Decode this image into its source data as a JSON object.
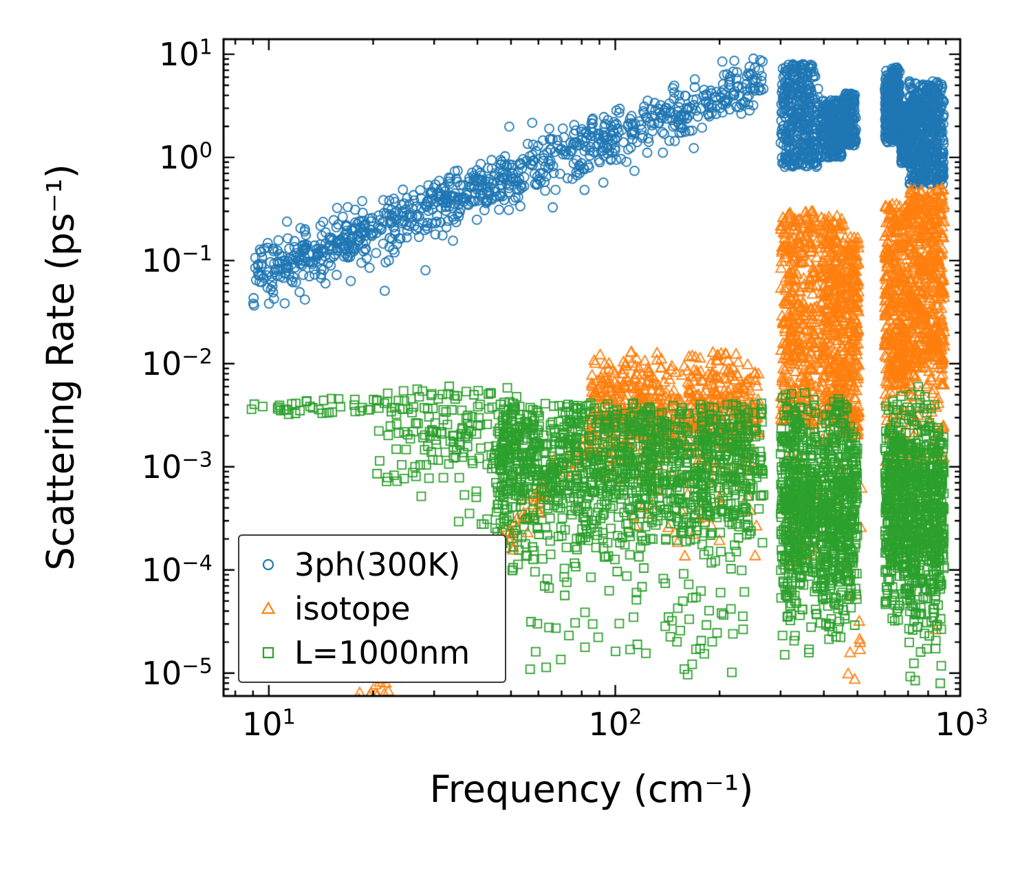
{
  "chart_data": {
    "type": "scatter",
    "title": "",
    "xlabel": "Frequency (cm⁻¹)",
    "ylabel": "Scattering Rate (ps⁻¹)",
    "x_scale": "log",
    "y_scale": "log",
    "xlim": [
      7.4,
      990
    ],
    "ylim": [
      6e-06,
      14
    ],
    "grid": false,
    "legend_position": "lower left",
    "x_ticks": [
      {
        "value": 10,
        "mantissa": "10",
        "exponent": "1"
      },
      {
        "value": 100,
        "mantissa": "10",
        "exponent": "2"
      },
      {
        "value": 1000,
        "mantissa": "10",
        "exponent": "3"
      }
    ],
    "y_ticks": [
      {
        "value": 1e-05,
        "mantissa": "10",
        "exponent": "−5"
      },
      {
        "value": 0.0001,
        "mantissa": "10",
        "exponent": "−4"
      },
      {
        "value": 0.001,
        "mantissa": "10",
        "exponent": "−3"
      },
      {
        "value": 0.01,
        "mantissa": "10",
        "exponent": "−2"
      },
      {
        "value": 0.1,
        "mantissa": "10",
        "exponent": "−1"
      },
      {
        "value": 1,
        "mantissa": "10",
        "exponent": "0"
      },
      {
        "value": 10,
        "mantissa": "10",
        "exponent": "1"
      }
    ],
    "series": [
      {
        "name": "3ph(300K)",
        "marker": "circle",
        "color": "#1f77b4",
        "clusters": [
          {
            "type": "powerlaw",
            "x_min": 9,
            "x_max": 268,
            "coeff": 0.004,
            "exponent": 1.3,
            "scatter_dex": 0.14,
            "count": 900
          },
          {
            "type": "band",
            "x_min": 16,
            "x_max": 30,
            "y_min": 0.04,
            "y_max": 0.12,
            "count": 5
          },
          {
            "type": "band",
            "x_min": 300,
            "x_max": 385,
            "y_min": 0.8,
            "y_max": 8,
            "count": 380
          },
          {
            "type": "band",
            "x_min": 392,
            "x_max": 452,
            "y_min": 1.0,
            "y_max": 3.6,
            "count": 260
          },
          {
            "type": "band",
            "x_min": 455,
            "x_max": 495,
            "y_min": 1.3,
            "y_max": 4.2,
            "count": 170
          },
          {
            "type": "band",
            "x_min": 600,
            "x_max": 662,
            "y_min": 1.4,
            "y_max": 7.5,
            "count": 320
          },
          {
            "type": "band",
            "x_min": 668,
            "x_max": 712,
            "y_min": 0.85,
            "y_max": 3.2,
            "count": 170
          },
          {
            "type": "band",
            "x_min": 705,
            "x_max": 888,
            "y_min": 0.55,
            "y_max": 5.5,
            "count": 520
          }
        ]
      },
      {
        "name": "isotope",
        "marker": "triangle",
        "color": "#ff7f0e",
        "clusters": [
          {
            "type": "powerlaw",
            "x_min": 18,
            "x_max": 85,
            "coeff": 3.9e-11,
            "exponent": 4.0,
            "scatter_dex": 0.12,
            "count": 160
          },
          {
            "type": "cloud",
            "x_min": 85,
            "x_max": 262,
            "y_center": 0.0038,
            "y_sigma_dex": 0.32,
            "y_min": 0.0007,
            "y_max": 0.013,
            "count": 650
          },
          {
            "type": "cloud",
            "x_min": 110,
            "x_max": 260,
            "y_center": 0.0004,
            "y_sigma_dex": 0.3,
            "y_min": 0.0001,
            "y_max": 0.001,
            "count": 30
          },
          {
            "type": "band",
            "x_min": 300,
            "x_max": 382,
            "y_min": 0.0025,
            "y_max": 0.3,
            "count": 380
          },
          {
            "type": "band",
            "x_min": 300,
            "x_max": 382,
            "y_min": 0.0001,
            "y_max": 0.0025,
            "count": 25
          },
          {
            "type": "band",
            "x_min": 390,
            "x_max": 458,
            "y_min": 0.0025,
            "y_max": 0.27,
            "count": 320
          },
          {
            "type": "band",
            "x_min": 390,
            "x_max": 458,
            "y_min": 0.0002,
            "y_max": 0.0025,
            "count": 20
          },
          {
            "type": "band",
            "x_min": 458,
            "x_max": 505,
            "y_min": 0.002,
            "y_max": 0.17,
            "count": 220
          },
          {
            "type": "band",
            "x_min": 460,
            "x_max": 520,
            "y_min": 8e-06,
            "y_max": 0.002,
            "count": 12
          },
          {
            "type": "band",
            "x_min": 600,
            "x_max": 700,
            "y_min": 0.006,
            "y_max": 0.35,
            "count": 340
          },
          {
            "type": "band",
            "x_min": 600,
            "x_max": 700,
            "y_min": 0.0008,
            "y_max": 0.006,
            "count": 30
          },
          {
            "type": "band",
            "x_min": 702,
            "x_max": 890,
            "y_min": 0.009,
            "y_max": 0.5,
            "count": 480
          },
          {
            "type": "band",
            "x_min": 702,
            "x_max": 890,
            "y_min": 0.0012,
            "y_max": 0.009,
            "count": 60
          },
          {
            "type": "band",
            "x_min": 720,
            "x_max": 880,
            "y_min": 2e-05,
            "y_max": 0.0012,
            "count": 10
          }
        ]
      },
      {
        "name": "L=1000nm",
        "marker": "square",
        "color": "#2ca02c",
        "clusters": [
          {
            "type": "band",
            "x_min": 8.8,
            "x_max": 28,
            "y_min": 0.0032,
            "y_max": 0.0046,
            "count": 45
          },
          {
            "type": "cloud",
            "x_min": 20,
            "x_max": 60,
            "y_center": 0.0022,
            "y_sigma_dex": 0.28,
            "y_min": 0.0004,
            "y_max": 0.0075,
            "count": 170
          },
          {
            "type": "band",
            "x_min": 35,
            "x_max": 60,
            "y_min": 8e-05,
            "y_max": 0.0006,
            "count": 35
          },
          {
            "type": "cloud",
            "x_min": 45,
            "x_max": 268,
            "y_center": 0.0011,
            "y_sigma_dex": 0.42,
            "y_min": 5e-05,
            "y_max": 0.0042,
            "count": 1300
          },
          {
            "type": "cloud",
            "x_min": 55,
            "x_max": 268,
            "y_center": 3e-05,
            "y_sigma_dex": 0.35,
            "y_min": 8e-06,
            "y_max": 0.00012,
            "count": 70
          },
          {
            "type": "cloud",
            "x_min": 300,
            "x_max": 385,
            "y_center": 0.00045,
            "y_sigma_dex": 0.55,
            "y_min": 1e-05,
            "y_max": 0.0055,
            "count": 480
          },
          {
            "type": "cloud",
            "x_min": 390,
            "x_max": 500,
            "y_center": 0.00035,
            "y_sigma_dex": 0.55,
            "y_min": 8e-06,
            "y_max": 0.005,
            "count": 480
          },
          {
            "type": "cloud",
            "x_min": 600,
            "x_max": 700,
            "y_center": 0.0004,
            "y_sigma_dex": 0.5,
            "y_min": 1e-05,
            "y_max": 0.006,
            "count": 380
          },
          {
            "type": "cloud",
            "x_min": 702,
            "x_max": 890,
            "y_center": 0.0003,
            "y_sigma_dex": 0.55,
            "y_min": 7e-06,
            "y_max": 0.0065,
            "count": 550
          }
        ]
      }
    ]
  }
}
